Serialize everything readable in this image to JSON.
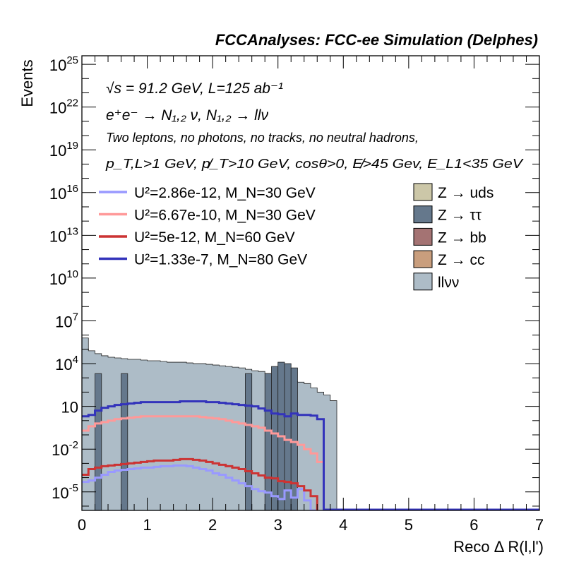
{
  "chart_data": {
    "type": "histogram",
    "title": "FCCAnalyses: FCC-ee Simulation (Delphes)",
    "xlabel": "Reco Δ R(l,l')",
    "ylabel": "Events",
    "xlim": [
      0,
      7
    ],
    "ylim_log10": [
      -6.3,
      25.6
    ],
    "yscale": "log",
    "bin_width": 0.1,
    "x_ticks": [
      "0",
      "1",
      "2",
      "3",
      "4",
      "5",
      "6",
      "7"
    ],
    "x_tick_values": [
      0,
      1,
      2,
      3,
      4,
      5,
      6,
      7
    ],
    "y_ticks": [
      {
        "base": "10",
        "exp": "25",
        "value": 25
      },
      {
        "base": "10",
        "exp": "22",
        "value": 22
      },
      {
        "base": "10",
        "exp": "19",
        "value": 19
      },
      {
        "base": "10",
        "exp": "16",
        "value": 16
      },
      {
        "base": "10",
        "exp": "13",
        "value": 13
      },
      {
        "base": "10",
        "exp": "10",
        "value": 10
      },
      {
        "base": "10",
        "exp": "7",
        "value": 7
      },
      {
        "base": "10",
        "exp": "4",
        "value": 4
      },
      {
        "base": "10",
        "exp": "",
        "value": 1
      },
      {
        "base": "10",
        "exp": "-2",
        "value": -2
      },
      {
        "base": "10",
        "exp": "-5",
        "value": -5
      }
    ],
    "annotations": {
      "energy_lumi": "√s = 91.2 GeV, L=125 ab⁻¹",
      "process": "e⁺e⁻ → N₁,₂ ν, N₁,₂ → llν",
      "selection_1": "Two leptons, no photons, no tracks, no neutral hadrons,",
      "selection_2": "p_T,L>1 GeV, p̸_T>10 GeV, cosθ>0, E̸>45 Gev, E_L1<35 GeV"
    },
    "signal_legend": [
      {
        "label": "U²=2.86e-12, M_N=30 GeV",
        "color": "#9999ff"
      },
      {
        "label": "U²=6.67e-10, M_N=30 GeV",
        "color": "#ff9999"
      },
      {
        "label": "U²=5e-12, M_N=60 GeV",
        "color": "#cc3333"
      },
      {
        "label": "U²=1.33e-7, M_N=80 GeV",
        "color": "#3333bb"
      }
    ],
    "background_legend": [
      {
        "label": "Z → uds",
        "color": "#ccc7a8"
      },
      {
        "label": "Z → ττ",
        "color": "#65788c"
      },
      {
        "label": "Z → bb",
        "color": "#a47373"
      },
      {
        "label": "Z → cc",
        "color": "#c99e7d"
      },
      {
        "label": "llνν",
        "color": "#adbcc7"
      }
    ],
    "series_log10": {
      "llvv": [
        5.8,
        4.9,
        4.7,
        4.55,
        4.45,
        4.4,
        4.35,
        4.3,
        4.3,
        4.25,
        4.2,
        4.2,
        4.15,
        4.1,
        4.1,
        4.1,
        4.05,
        4.0,
        4.0,
        3.95,
        3.9,
        3.85,
        3.8,
        3.75,
        3.7,
        3.6,
        3.5,
        3.45,
        3.3,
        3.2,
        3.0,
        2.8,
        2.75,
        2.7,
        2.6,
        2.3,
        2.0,
        1.8,
        1.4
      ],
      "tautau_bins": [
        {
          "x0": 0.2,
          "x1": 0.3,
          "log10": 3.3
        },
        {
          "x0": 0.6,
          "x1": 0.7,
          "log10": 3.3
        },
        {
          "x0": 2.5,
          "x1": 2.6,
          "log10": 3.3
        },
        {
          "x0": 2.8,
          "x1": 2.9,
          "log10": 3.3
        },
        {
          "x0": 2.9,
          "x1": 3.0,
          "log10": 3.8
        },
        {
          "x0": 3.0,
          "x1": 3.1,
          "log10": 4.1
        },
        {
          "x0": 3.1,
          "x1": 3.2,
          "log10": 4.0
        },
        {
          "x0": 3.2,
          "x1": 3.3,
          "log10": 3.7
        }
      ],
      "sig_80": [
        0.3,
        0.4,
        0.7,
        0.9,
        1.0,
        1.1,
        1.15,
        1.2,
        1.25,
        1.3,
        1.3,
        1.3,
        1.3,
        1.3,
        1.3,
        1.35,
        1.35,
        1.35,
        1.35,
        1.3,
        1.3,
        1.25,
        1.2,
        1.15,
        1.1,
        1.05,
        1.0,
        0.85,
        0.7,
        0.5,
        0.45,
        0.3,
        0.5,
        0.4,
        0.4,
        0.35,
        0.1
      ],
      "sig_30b": [
        -0.7,
        -0.4,
        -0.2,
        -0.1,
        0.0,
        0.1,
        0.15,
        0.2,
        0.25,
        0.3,
        0.3,
        0.3,
        0.3,
        0.3,
        0.3,
        0.3,
        0.3,
        0.3,
        0.25,
        0.2,
        0.15,
        0.1,
        0.0,
        -0.1,
        -0.2,
        -0.3,
        -0.4,
        -0.5,
        -0.7,
        -0.9,
        -1.1,
        -1.35,
        -1.5,
        -1.7,
        -2.0,
        -2.3,
        -2.9
      ],
      "sig_60": [
        -3.8,
        -3.4,
        -3.3,
        -3.2,
        -3.15,
        -3.1,
        -3.05,
        -3.0,
        -2.95,
        -2.9,
        -2.85,
        -2.8,
        -2.8,
        -2.8,
        -2.75,
        -2.7,
        -2.7,
        -2.75,
        -2.8,
        -2.9,
        -3.0,
        -3.1,
        -3.2,
        -3.3,
        -3.4,
        -3.55,
        -3.7,
        -3.85,
        -4.0,
        -4.05,
        -4.25,
        -4.3,
        -4.4,
        -4.6,
        -4.9,
        -5.3
      ],
      "sig_30a": [
        -4.3,
        -4.2,
        -4.0,
        -3.8,
        -3.6,
        -3.5,
        -3.45,
        -3.4,
        -3.35,
        -3.3,
        -3.3,
        -3.25,
        -3.2,
        -3.2,
        -3.15,
        -3.15,
        -3.2,
        -3.3,
        -3.4,
        -3.5,
        -3.7,
        -3.8,
        -4.0,
        -4.2,
        -4.4,
        -4.6,
        -4.8,
        -4.95,
        -5.05,
        -5.3,
        -5.5,
        -4.9,
        -5.4,
        -4.8,
        -5.6,
        -6.3
      ]
    }
  }
}
